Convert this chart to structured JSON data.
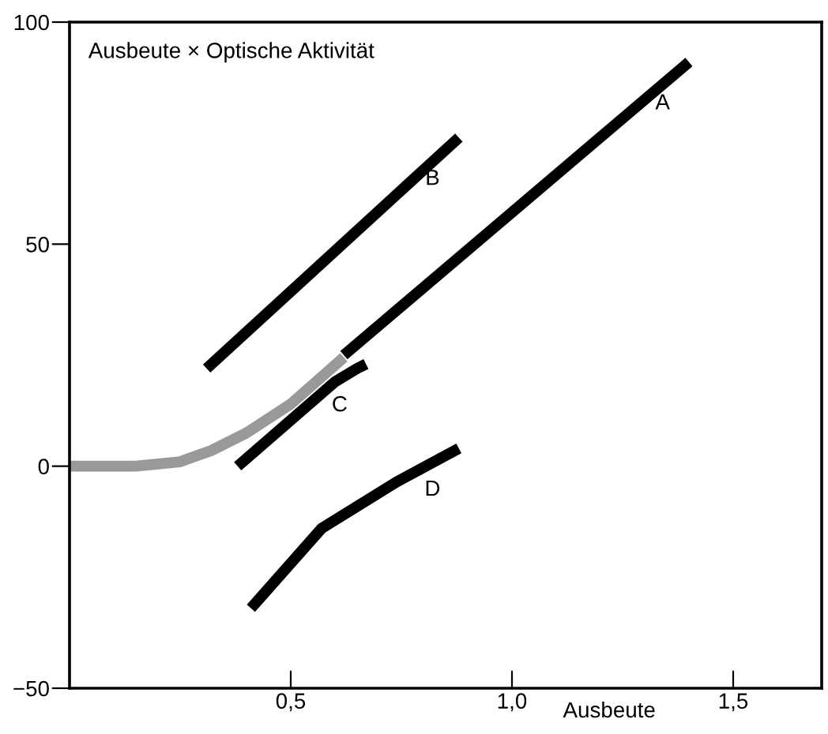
{
  "chart_data": {
    "type": "line",
    "title": "Ausbeute × Optische Aktivität",
    "xlabel": "Ausbeute",
    "xlim": [
      0,
      1.7
    ],
    "xticks": [
      {
        "value": 0.5,
        "label": "0,5"
      },
      {
        "value": 1.0,
        "label": "1,0"
      },
      {
        "value": 1.5,
        "label": "1,5"
      }
    ],
    "ylim": [
      -50,
      100
    ],
    "yticks": [
      -50,
      0,
      50,
      100
    ],
    "grid": false,
    "legend": false,
    "series": [
      {
        "color": "#999999",
        "x": [
          0,
          0.15,
          0.25,
          0.32,
          0.4,
          0.5,
          0.62
        ],
        "values": [
          0,
          0,
          1,
          3.5,
          7.5,
          14,
          24.5
        ]
      },
      {
        "name": "A",
        "color": "#000000",
        "x": [
          0.62,
          1.4
        ],
        "values": [
          25,
          91
        ]
      },
      {
        "name": "B",
        "color": "#000000",
        "x": [
          0.31,
          0.88
        ],
        "values": [
          22,
          74
        ]
      },
      {
        "name": "C",
        "color": "#000000",
        "x": [
          0.38,
          0.6,
          0.65,
          0.67
        ],
        "values": [
          0,
          19,
          22,
          23
        ]
      },
      {
        "name": "D",
        "color": "#000000",
        "x": [
          0.41,
          0.57,
          0.74,
          0.88
        ],
        "values": [
          -32,
          -14,
          -3.5,
          4
        ]
      }
    ]
  }
}
